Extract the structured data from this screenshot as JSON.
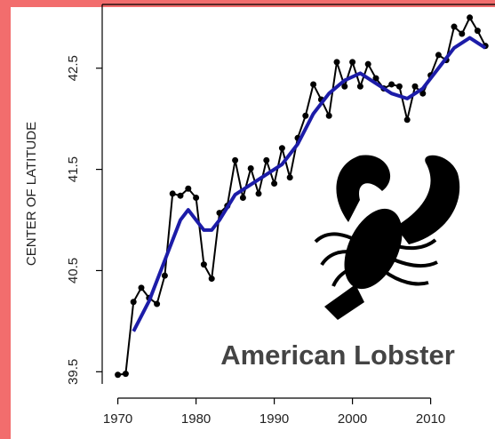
{
  "chart_data": {
    "type": "line",
    "y_label": "CENTER OF LATITUDE",
    "annotation": "American Lobster",
    "xlim": [
      1968,
      2018
    ],
    "ylim": [
      39.38,
      43.13
    ],
    "xticks": [
      1970,
      1980,
      1990,
      2000,
      2010
    ],
    "yticks": [
      39.5,
      40.5,
      41.5,
      42.5
    ],
    "series": [
      {
        "color": "#000000",
        "markers": true,
        "x": [
          1970,
          1971,
          1972,
          1973,
          1974,
          1975,
          1976,
          1977,
          1978,
          1979,
          1980,
          1981,
          1982,
          1983,
          1984,
          1985,
          1986,
          1987,
          1988,
          1989,
          1990,
          1991,
          1992,
          1993,
          1994,
          1995,
          1996,
          1997,
          1998,
          1999,
          2000,
          2001,
          2002,
          2003,
          2004,
          2005,
          2006,
          2007,
          2008,
          2009,
          2010,
          2011,
          2012,
          2013,
          2014,
          2015,
          2016,
          2017
        ],
        "values": [
          39.47,
          39.48,
          40.19,
          40.33,
          40.23,
          40.17,
          40.45,
          41.26,
          41.24,
          41.31,
          41.22,
          40.56,
          40.42,
          41.07,
          41.14,
          41.59,
          41.22,
          41.51,
          41.26,
          41.59,
          41.36,
          41.71,
          41.42,
          41.81,
          42.03,
          42.34,
          42.19,
          42.03,
          42.56,
          42.32,
          42.56,
          42.32,
          42.54,
          42.4,
          42.3,
          42.34,
          42.32,
          41.99,
          42.32,
          42.25,
          42.43,
          42.63,
          42.58,
          42.91,
          42.84,
          43.0,
          42.87,
          42.72
        ]
      },
      {
        "color": "#1c1ca8",
        "markers": false,
        "x": [
          1972,
          1974,
          1976,
          1978,
          1979,
          1980,
          1981,
          1982,
          1983,
          1985,
          1987,
          1989,
          1991,
          1993,
          1995,
          1997,
          1999,
          2001,
          2003,
          2005,
          2007,
          2009,
          2011,
          2013,
          2015,
          2017
        ],
        "values": [
          39.9,
          40.2,
          40.6,
          41.0,
          41.1,
          41.0,
          40.9,
          40.9,
          41.0,
          41.25,
          41.35,
          41.45,
          41.55,
          41.75,
          42.05,
          42.25,
          42.38,
          42.45,
          42.35,
          42.25,
          42.2,
          42.3,
          42.5,
          42.7,
          42.8,
          42.7
        ]
      }
    ]
  }
}
